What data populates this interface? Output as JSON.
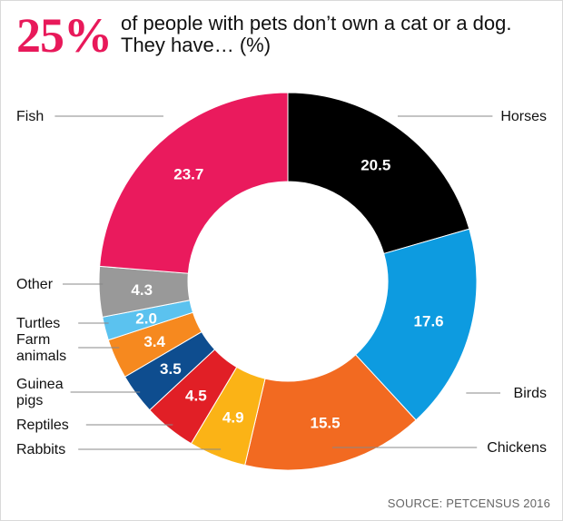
{
  "headline": {
    "stat": "25%",
    "text": "of people with pets don’t own a cat or a dog. They have… (%)"
  },
  "source": "SOURCE: PETCENSUS 2016",
  "chart_data": {
    "type": "pie",
    "donut": true,
    "unit": "%",
    "slices": [
      {
        "label": "Horses",
        "value": 20.5,
        "color": "#000000",
        "text_color": "#ffffff"
      },
      {
        "label": "Birds",
        "value": 17.6,
        "color": "#0d9be0",
        "text_color": "#ffffff"
      },
      {
        "label": "Chickens",
        "value": 15.5,
        "color": "#f26a21",
        "text_color": "#ffffff"
      },
      {
        "label": "Rabbits",
        "value": 4.9,
        "color": "#fbb316",
        "text_color": "#ffffff"
      },
      {
        "label": "Reptiles",
        "value": 4.5,
        "color": "#e11f26",
        "text_color": "#ffffff"
      },
      {
        "label": "Guinea pigs",
        "value": 3.5,
        "color": "#0e4d8f",
        "text_color": "#ffffff"
      },
      {
        "label": "Farm animals",
        "value": 3.4,
        "color": "#f6891f",
        "text_color": "#ffffff"
      },
      {
        "label": "Turtles",
        "value": 2.0,
        "color": "#5bc2ef",
        "text_color": "#ffffff"
      },
      {
        "label": "Other",
        "value": 4.3,
        "color": "#999999",
        "text_color": "#ffffff"
      },
      {
        "label": "Fish",
        "value": 23.7,
        "color": "#ea1a5d",
        "text_color": "#ffffff"
      }
    ]
  }
}
